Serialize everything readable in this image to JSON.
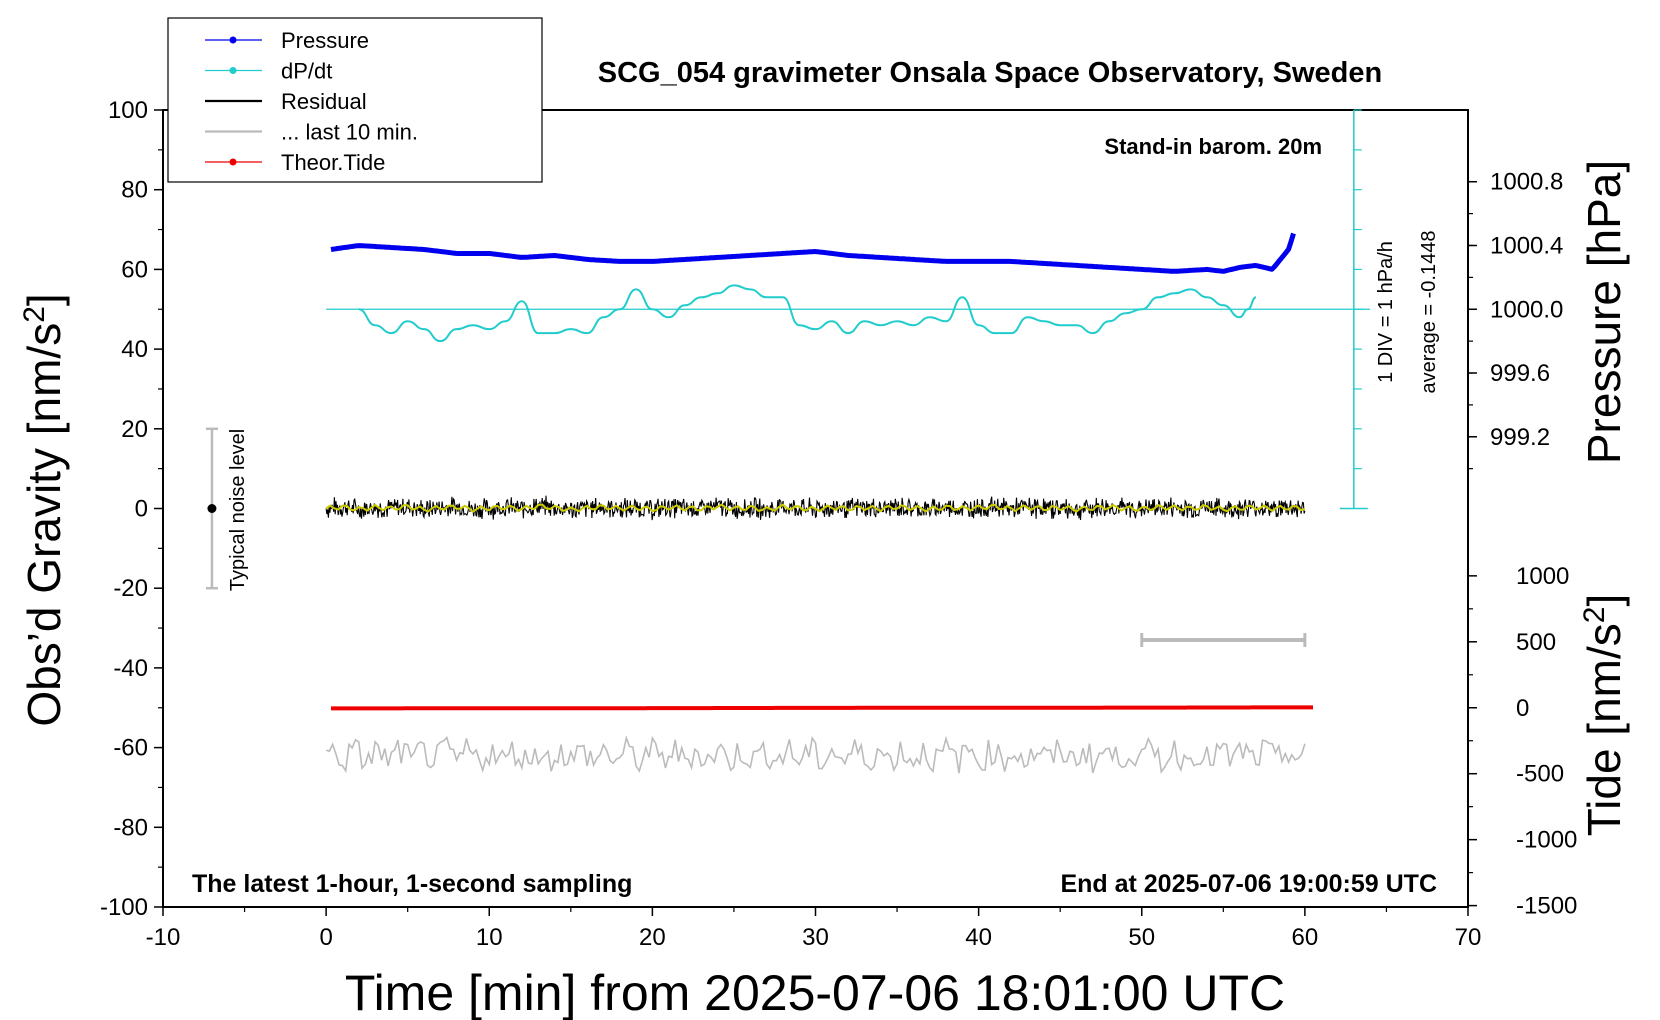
{
  "chart_data": {
    "type": "line",
    "title": "SCG_054 gravimeter Onsala Space Observatory, Sweden",
    "xlabel": "Time [min] from 2025-07-06 18:01:00 UTC",
    "xlim": [
      -10,
      70
    ],
    "x_ticks": [
      "-10",
      "0",
      "10",
      "20",
      "30",
      "40",
      "50",
      "60",
      "70"
    ],
    "left_axis": {
      "label": "Obs’d Gravity [nm/s",
      "label_sup": "2",
      "label_end": "]",
      "ylim": [
        -100,
        100
      ],
      "ticks": [
        "100",
        "80",
        "60",
        "40",
        "20",
        "0",
        "-20",
        "-40",
        "-60",
        "-80",
        "-100"
      ]
    },
    "pressure_axis": {
      "label": "Pressure [hPa]",
      "range_hpa": [
        998.8,
        1001.2
      ],
      "ticks": [
        "1000.8",
        "1000.4",
        "1000.0",
        "999.6",
        "999.2"
      ],
      "tick_values": [
        1000.8,
        1000.4,
        1000.0,
        999.6,
        999.2
      ]
    },
    "tide_axis": {
      "label": "Tide [nm/s",
      "label_sup": "2",
      "label_end": "]",
      "range": [
        -1500,
        1000
      ],
      "ticks": [
        "1000",
        "500",
        "0",
        "-500",
        "-1000",
        "-1500"
      ],
      "tick_values": [
        1000,
        500,
        0,
        -500,
        -1000,
        -1500
      ]
    },
    "legend": {
      "position": "top-left",
      "entries": [
        {
          "label": "Pressure",
          "color": "#0000ee",
          "style": "line-dot"
        },
        {
          "label": "dP/dt",
          "color": "#22cccc",
          "style": "line-dot"
        },
        {
          "label": "Residual",
          "color": "#000000",
          "style": "line"
        },
        {
          "label": "... last 10 min.",
          "color": "#bbbbbb",
          "style": "line"
        },
        {
          "label": "Theor.Tide",
          "color": "#ee0000",
          "style": "line-dot"
        }
      ]
    },
    "annotations": {
      "barometer": "Stand-in barom. 20m",
      "footer_left": "The latest 1-hour, 1-second sampling",
      "footer_right": "End at 2025-07-06 19:00:59 UTC",
      "noise_label": "Typical noise level",
      "dpdt_div": "1 DIV = 1 hPa/h",
      "dpdt_avg": "average = -0.1448"
    },
    "noise_bar": {
      "x": -7,
      "center": 0,
      "low": -20,
      "high": 20
    },
    "last10_bar": {
      "x_start": 50,
      "x_end": 60,
      "y": -33
    },
    "series": [
      {
        "name": "Pressure",
        "color": "#0000ee",
        "axis": "gravity-scale",
        "x": [
          0.3,
          2,
          4,
          6,
          8,
          10,
          12,
          14,
          16,
          18,
          20,
          22,
          24,
          26,
          28,
          30,
          32,
          34,
          36,
          38,
          40,
          42,
          44,
          46,
          48,
          50,
          52,
          54,
          55,
          56,
          57,
          58,
          59,
          59.3
        ],
        "y": [
          65,
          66,
          65.5,
          65,
          64,
          64,
          63,
          63.5,
          62.5,
          62,
          62,
          62.5,
          63,
          63.5,
          64,
          64.5,
          63.5,
          63,
          62.5,
          62,
          62,
          62,
          61.5,
          61,
          60.5,
          60,
          59.5,
          60,
          59.5,
          60.5,
          61,
          60,
          65,
          69
        ]
      },
      {
        "name": "dP/dt",
        "color": "#22cccc",
        "axis": "gravity-scale",
        "x": [
          2,
          3,
          4,
          5,
          6,
          7,
          8,
          9,
          10,
          11,
          12,
          13,
          14,
          15,
          16,
          17,
          18,
          19,
          20,
          21,
          22,
          23,
          24,
          25,
          26,
          27,
          28,
          29,
          30,
          31,
          32,
          33,
          34,
          35,
          36,
          37,
          38,
          39,
          40,
          41,
          42,
          43,
          44,
          45,
          46,
          47,
          48,
          49,
          50,
          51,
          52,
          53,
          54,
          55,
          56,
          56.5,
          57
        ],
        "y": [
          50,
          46,
          44,
          47,
          45,
          42,
          45,
          46,
          45,
          47,
          52,
          44,
          44,
          45,
          44,
          48,
          50,
          55,
          50,
          48,
          51,
          53,
          54,
          56,
          55,
          53,
          53,
          46,
          45,
          47,
          44,
          47,
          46,
          47,
          46,
          48,
          47,
          53,
          46,
          44,
          44,
          48,
          47,
          46,
          46,
          44,
          47,
          49,
          50,
          53,
          54,
          55,
          53,
          51,
          48,
          50,
          53
        ]
      },
      {
        "name": "Residual",
        "color": "#000000",
        "axis": "gravity",
        "x": [
          0,
          1,
          2,
          3,
          4,
          5,
          6,
          7,
          8,
          9,
          10,
          11,
          12,
          13,
          14,
          15,
          16,
          17,
          18,
          19,
          20,
          21,
          22,
          23,
          24,
          25,
          26,
          27,
          28,
          29,
          30,
          31,
          32,
          33,
          34,
          35,
          36,
          37,
          38,
          39,
          40,
          41,
          42,
          43,
          44,
          45,
          46,
          47,
          48,
          49,
          50,
          51,
          52,
          53,
          54,
          55,
          56,
          57,
          58,
          59,
          60
        ],
        "y": [
          0,
          0.4,
          -0.2,
          0.3,
          0,
          0.5,
          -0.3,
          0.2,
          0.4,
          -0.2,
          0.1,
          0.3,
          -0.1,
          0.6,
          0.2,
          -0.3,
          0.1,
          0.4,
          0,
          0.2,
          -0.2,
          0.3,
          0.1,
          -0.1,
          0.5,
          0,
          0.2,
          -0.3,
          0.4,
          0.1,
          -0.2,
          0.3,
          0,
          0.2,
          -0.1,
          0.4,
          0.1,
          -0.2,
          0.3,
          0,
          0.2,
          0.5,
          -0.1,
          0.3,
          0,
          0.2,
          -0.2,
          0.1,
          0.4,
          0,
          -0.1,
          0.3,
          0.2,
          0,
          0.4,
          -0.2,
          0.1,
          0.3,
          0,
          0.2,
          0.1
        ],
        "noise_amplitude": 3
      },
      {
        "name": "Theor.Tide",
        "color": "#ee0000",
        "axis": "tide",
        "x": [
          0.3,
          10,
          20,
          30,
          40,
          50,
          60.5
        ],
        "y": [
          -5,
          -4,
          -3,
          -1,
          0,
          1,
          3
        ]
      },
      {
        "name": "... last 10 min.",
        "color": "#bbbbbb",
        "axis": "gravity",
        "x": [
          0,
          60
        ],
        "y": [
          -62,
          -62
        ],
        "noise_amplitude": 3.5
      }
    ]
  }
}
